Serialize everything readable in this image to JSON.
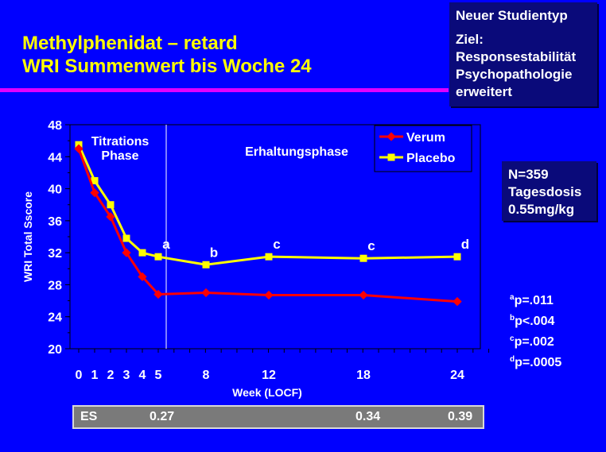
{
  "title": {
    "line1": "Methylphenidat – retard",
    "line2": "WRI Summenwert bis Woche 24"
  },
  "study_box": {
    "heading": "Neuer Studientyp",
    "goal_label": "Ziel:",
    "goal_lines": [
      "Responsestabilität",
      "Psychopathologie",
      "erweitert"
    ]
  },
  "n_box": {
    "lines": [
      "N=359",
      "Tagesdosis",
      "0.55mg/kg"
    ]
  },
  "pvalues": [
    {
      "sup": "a",
      "text": "p=.011"
    },
    {
      "sup": "b",
      "text": "p<.004"
    },
    {
      "sup": "c",
      "text": "p=.002"
    },
    {
      "sup": "d",
      "text": "p=.0005"
    }
  ],
  "es_row": {
    "label": "ES",
    "values": [
      "0.27",
      "0.34",
      "0.39"
    ]
  },
  "colors": {
    "background": "#0000ff",
    "title": "#ffff00",
    "rule": "#e000ff",
    "plot_bg": "#0000ff",
    "verum": "#ff0000",
    "placebo": "#ffff00",
    "text": "#ffffff"
  },
  "chart_data": {
    "type": "line",
    "ylabel": "WRI Total Sscore",
    "xlabel": "Week (LOCF)",
    "ylim": [
      20,
      48
    ],
    "yticks": [
      20,
      24,
      28,
      32,
      36,
      40,
      44,
      48
    ],
    "x_ticks": [
      0,
      1,
      2,
      3,
      4,
      5,
      8,
      12,
      18,
      24
    ],
    "phase_labels": [
      "Titrations\nPhase",
      "Erhaltungsphase"
    ],
    "phase_boundary": 5,
    "legend_position": "top-right",
    "series": [
      {
        "name": "Verum",
        "points": [
          [
            0,
            45
          ],
          [
            1,
            39.5
          ],
          [
            2,
            36.5
          ],
          [
            3,
            32
          ],
          [
            4,
            29
          ],
          [
            5,
            26.8
          ],
          [
            8,
            27
          ],
          [
            12,
            26.7
          ],
          [
            18,
            26.7
          ],
          [
            24,
            25.9
          ]
        ]
      },
      {
        "name": "Placebo",
        "points": [
          [
            0,
            45.5
          ],
          [
            1,
            41
          ],
          [
            2,
            38
          ],
          [
            3,
            33.8
          ],
          [
            4,
            32
          ],
          [
            5,
            31.5
          ],
          [
            8,
            30.5
          ],
          [
            12,
            31.5
          ],
          [
            18,
            31.3
          ],
          [
            24,
            31.5
          ]
        ]
      }
    ],
    "annotations": [
      {
        "text": "a",
        "x": 5,
        "y": 31.5
      },
      {
        "text": "b",
        "x": 8,
        "y": 30.5
      },
      {
        "text": "c",
        "x": 12,
        "y": 31.5
      },
      {
        "text": "c",
        "x": 18,
        "y": 31.3
      },
      {
        "text": "d",
        "x": 24,
        "y": 31.5
      }
    ]
  }
}
